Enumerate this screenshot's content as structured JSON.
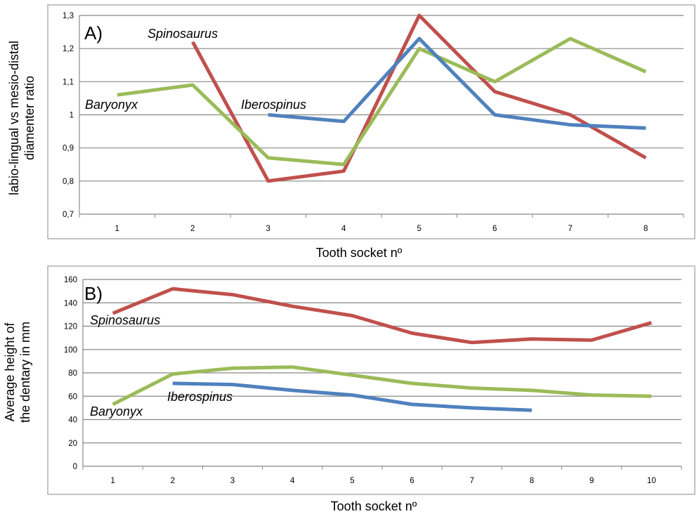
{
  "chart_data": [
    {
      "type": "line",
      "panel_label": "A)",
      "xlabel": "Tooth socket nº",
      "ylabel": [
        "labio-lingual vs mesio-distal",
        "diamenter ratio"
      ],
      "categories": [
        "1",
        "2",
        "3",
        "4",
        "5",
        "6",
        "7",
        "8"
      ],
      "ylim": [
        0.7,
        1.3
      ],
      "yticks": [
        "0,7",
        "0,8",
        "0,9",
        "1",
        "1,1",
        "1,2",
        "1,3"
      ],
      "grid": true,
      "series": [
        {
          "name": "Spinosaurus",
          "color": "#c0504d",
          "values": [
            null,
            1.22,
            0.8,
            0.83,
            1.3,
            1.07,
            1.0,
            0.87
          ]
        },
        {
          "name": "Baryonyx",
          "color": "#9bbb59",
          "values": [
            1.06,
            1.09,
            0.87,
            0.85,
            1.2,
            1.1,
            1.23,
            1.13
          ]
        },
        {
          "name": "Iberospinus",
          "color": "#4f81bd",
          "values": [
            null,
            null,
            1.0,
            0.98,
            1.23,
            1.0,
            0.97,
            0.96
          ]
        }
      ]
    },
    {
      "type": "line",
      "panel_label": "B)",
      "xlabel": "Tooth socket nº",
      "ylabel": [
        "Average height of",
        "the dentary in mm"
      ],
      "categories": [
        "1",
        "2",
        "3",
        "4",
        "5",
        "6",
        "7",
        "8",
        "9",
        "10"
      ],
      "ylim": [
        0,
        160
      ],
      "yticks": [
        "0",
        "20",
        "40",
        "60",
        "80",
        "100",
        "120",
        "140",
        "160"
      ],
      "grid": true,
      "series": [
        {
          "name": "Spinosaurus",
          "color": "#c0504d",
          "values": [
            131,
            152,
            147,
            137,
            129,
            114,
            106,
            109,
            108,
            123
          ]
        },
        {
          "name": "Baryonyx",
          "color": "#9bbb59",
          "values": [
            53,
            79,
            84,
            85,
            78,
            71,
            67,
            65,
            61,
            60
          ]
        },
        {
          "name": "Iberospinus",
          "color": "#4f81bd",
          "values": [
            null,
            71,
            70,
            65,
            61,
            53,
            50,
            48,
            null,
            null
          ]
        }
      ]
    }
  ]
}
